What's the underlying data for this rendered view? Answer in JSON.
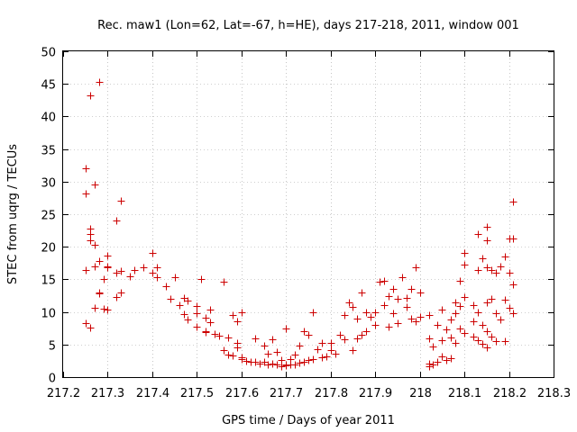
{
  "chart_data": {
    "type": "scatter",
    "title": "Rec. maw1 (Lon=62, Lat=-67, h=HE), days 217-218, 2011, window 001",
    "xlabel": "GPS time / Days of year 2011",
    "ylabel": "STEC from uqrg / TECUs",
    "xlim": [
      217.2,
      218.3
    ],
    "ylim": [
      0,
      50
    ],
    "xticks": [
      "217.2",
      "217.3",
      "217.4",
      "217.5",
      "217.6",
      "217.7",
      "217.8",
      "217.9",
      "218",
      "218.1",
      "218.2",
      "218.3"
    ],
    "yticks": [
      "0",
      "5",
      "10",
      "15",
      "20",
      "25",
      "30",
      "35",
      "40",
      "45",
      "50"
    ],
    "grid": true,
    "marker": "+",
    "color": "#cc0000",
    "series": [
      {
        "points": [
          [
            217.25,
            32
          ],
          [
            217.25,
            28.2
          ],
          [
            217.25,
            16.5
          ],
          [
            217.25,
            8.3
          ],
          [
            217.26,
            43.3
          ],
          [
            217.26,
            22.8
          ],
          [
            217.26,
            22
          ],
          [
            217.26,
            21
          ],
          [
            217.26,
            7.6
          ],
          [
            217.27,
            29.5
          ],
          [
            217.27,
            20.3
          ],
          [
            217.27,
            17
          ],
          [
            217.27,
            10.6
          ],
          [
            217.28,
            45.3
          ],
          [
            217.28,
            17.8
          ],
          [
            217.28,
            13
          ],
          [
            217.28,
            12.8
          ],
          [
            217.29,
            15
          ],
          [
            217.29,
            10.5
          ],
          [
            217.3,
            18.7
          ],
          [
            217.3,
            17
          ],
          [
            217.3,
            16.8
          ],
          [
            217.3,
            10.4
          ],
          [
            217.32,
            24
          ],
          [
            217.32,
            16
          ],
          [
            217.32,
            12.3
          ],
          [
            217.33,
            27.1
          ],
          [
            217.33,
            16.3
          ],
          [
            217.33,
            13
          ],
          [
            217.35,
            15.5
          ],
          [
            217.36,
            16.5
          ],
          [
            217.38,
            16.8
          ],
          [
            217.4,
            19
          ],
          [
            217.4,
            16
          ],
          [
            217.41,
            16.8
          ],
          [
            217.41,
            15.3
          ],
          [
            217.43,
            14
          ],
          [
            217.44,
            12
          ],
          [
            217.45,
            15.4
          ],
          [
            217.46,
            11
          ],
          [
            217.47,
            12.2
          ],
          [
            217.47,
            9.7
          ],
          [
            217.48,
            11.8
          ],
          [
            217.48,
            8.8
          ],
          [
            217.5,
            10.9
          ],
          [
            217.5,
            9.8
          ],
          [
            217.5,
            7.8
          ],
          [
            217.51,
            15
          ],
          [
            217.52,
            9.1
          ],
          [
            217.52,
            7.1
          ],
          [
            217.52,
            6.9
          ],
          [
            217.53,
            10.4
          ],
          [
            217.53,
            8.4
          ],
          [
            217.54,
            6.6
          ],
          [
            217.55,
            6.4
          ],
          [
            217.56,
            14.7
          ],
          [
            217.56,
            4.2
          ],
          [
            217.57,
            3.5
          ],
          [
            217.57,
            6.1
          ],
          [
            217.58,
            9.5
          ],
          [
            217.58,
            3.3
          ],
          [
            217.59,
            8.5
          ],
          [
            217.59,
            5.3
          ],
          [
            217.59,
            4.5
          ],
          [
            217.6,
            10
          ],
          [
            217.6,
            3
          ],
          [
            217.6,
            2.7
          ],
          [
            217.61,
            2.5
          ],
          [
            217.62,
            2.4
          ],
          [
            217.63,
            2.3
          ],
          [
            217.63,
            6
          ],
          [
            217.64,
            2.1
          ],
          [
            217.65,
            4.8
          ],
          [
            217.65,
            2.4
          ],
          [
            217.66,
            3.6
          ],
          [
            217.66,
            1.9
          ],
          [
            217.67,
            2.1
          ],
          [
            217.67,
            5.8
          ],
          [
            217.68,
            1.9
          ],
          [
            217.68,
            3.8
          ],
          [
            217.69,
            1.7
          ],
          [
            217.69,
            2.6
          ],
          [
            217.7,
            1.8
          ],
          [
            217.7,
            7.4
          ],
          [
            217.7,
            1.9
          ],
          [
            217.71,
            2
          ],
          [
            217.71,
            2.8
          ],
          [
            217.72,
            2
          ],
          [
            217.72,
            3.5
          ],
          [
            217.73,
            2.2
          ],
          [
            217.73,
            4.9
          ],
          [
            217.74,
            2.4
          ],
          [
            217.74,
            7.1
          ],
          [
            217.75,
            2.6
          ],
          [
            217.75,
            6.5
          ],
          [
            217.76,
            10
          ],
          [
            217.76,
            2.8
          ],
          [
            217.77,
            4.3
          ],
          [
            217.78,
            3
          ],
          [
            217.78,
            5.2
          ],
          [
            217.79,
            3.2
          ],
          [
            217.8,
            4.1
          ],
          [
            217.8,
            5.2
          ],
          [
            217.81,
            3.6
          ],
          [
            217.82,
            6.5
          ],
          [
            217.83,
            5.8
          ],
          [
            217.83,
            9.5
          ],
          [
            217.84,
            11.5
          ],
          [
            217.85,
            10.8
          ],
          [
            217.85,
            4.2
          ],
          [
            217.86,
            6
          ],
          [
            217.86,
            9
          ],
          [
            217.87,
            6.5
          ],
          [
            217.87,
            13
          ],
          [
            217.88,
            7
          ],
          [
            217.88,
            10
          ],
          [
            217.89,
            9.2
          ],
          [
            217.9,
            8
          ],
          [
            217.9,
            10
          ],
          [
            217.91,
            14.6
          ],
          [
            217.92,
            14.8
          ],
          [
            217.92,
            11
          ],
          [
            217.93,
            12.5
          ],
          [
            217.93,
            7.8
          ],
          [
            217.94,
            13.5
          ],
          [
            217.94,
            9.8
          ],
          [
            217.95,
            12
          ],
          [
            217.95,
            8.3
          ],
          [
            217.96,
            15.3
          ],
          [
            217.97,
            12.2
          ],
          [
            217.97,
            10.8
          ],
          [
            217.98,
            9
          ],
          [
            217.98,
            13.5
          ],
          [
            217.99,
            16.8
          ],
          [
            217.99,
            8.5
          ],
          [
            218,
            13
          ],
          [
            218,
            9.2
          ],
          [
            218.02,
            9.5
          ],
          [
            218.02,
            5.9
          ],
          [
            218.02,
            2.1
          ],
          [
            218.02,
            1.6
          ],
          [
            218.03,
            4.7
          ],
          [
            218.03,
            2
          ],
          [
            218.04,
            8
          ],
          [
            218.04,
            2.3
          ],
          [
            218.05,
            10.3
          ],
          [
            218.05,
            5.7
          ],
          [
            218.05,
            3.2
          ],
          [
            218.06,
            7.3
          ],
          [
            218.06,
            2.6
          ],
          [
            218.07,
            8.8
          ],
          [
            218.07,
            6.1
          ],
          [
            218.07,
            2.9
          ],
          [
            218.08,
            11.5
          ],
          [
            218.08,
            9.8
          ],
          [
            218.08,
            5.3
          ],
          [
            218.09,
            14.8
          ],
          [
            218.09,
            10.9
          ],
          [
            218.09,
            7.5
          ],
          [
            218.1,
            19
          ],
          [
            218.1,
            17.3
          ],
          [
            218.1,
            12.3
          ],
          [
            218.1,
            6.8
          ],
          [
            218.12,
            11
          ],
          [
            218.12,
            8.6
          ],
          [
            218.12,
            6.2
          ],
          [
            218.13,
            22
          ],
          [
            218.13,
            16.5
          ],
          [
            218.13,
            10
          ],
          [
            218.13,
            5.7
          ],
          [
            218.14,
            18.3
          ],
          [
            218.14,
            8
          ],
          [
            218.14,
            5.1
          ],
          [
            218.15,
            23
          ],
          [
            218.15,
            21
          ],
          [
            218.15,
            16.8
          ],
          [
            218.15,
            11.5
          ],
          [
            218.15,
            7
          ],
          [
            218.15,
            4.6
          ],
          [
            218.16,
            16.5
          ],
          [
            218.16,
            12
          ],
          [
            218.16,
            6.2
          ],
          [
            218.17,
            16
          ],
          [
            218.17,
            9.8
          ],
          [
            218.17,
            5.5
          ],
          [
            218.18,
            17
          ],
          [
            218.18,
            8.8
          ],
          [
            218.19,
            18.5
          ],
          [
            218.19,
            11.9
          ],
          [
            218.19,
            5.5
          ],
          [
            218.2,
            21.3
          ],
          [
            218.2,
            16
          ],
          [
            218.2,
            10.7
          ],
          [
            218.21,
            27
          ],
          [
            218.21,
            21.3
          ],
          [
            218.21,
            14.2
          ],
          [
            218.21,
            9.8
          ]
        ]
      }
    ]
  }
}
